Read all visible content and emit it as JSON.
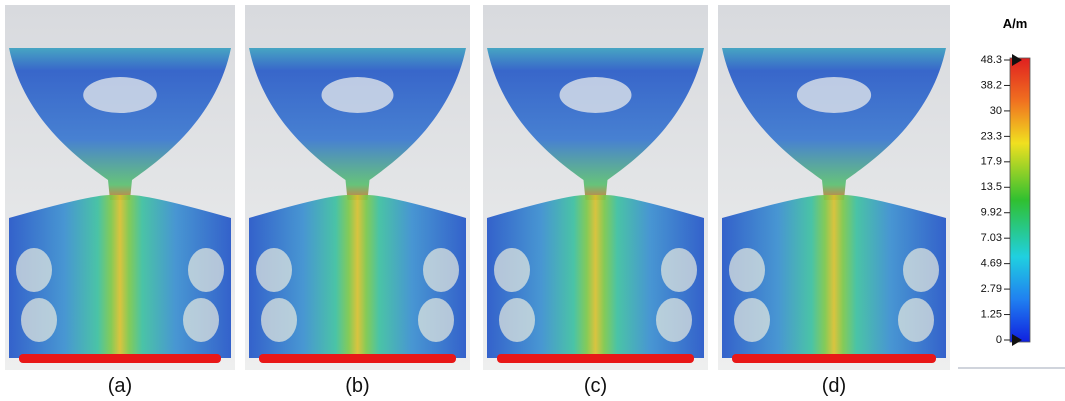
{
  "panels": [
    {
      "label": "(a)"
    },
    {
      "label": "(b)"
    },
    {
      "label": "(c)"
    },
    {
      "label": "(d)"
    }
  ],
  "colorbar": {
    "unit": "A/m",
    "ticks": [
      48.3,
      38.2,
      30,
      23.3,
      17.9,
      13.5,
      9.92,
      7.03,
      4.69,
      2.79,
      1.25,
      0
    ]
  }
}
